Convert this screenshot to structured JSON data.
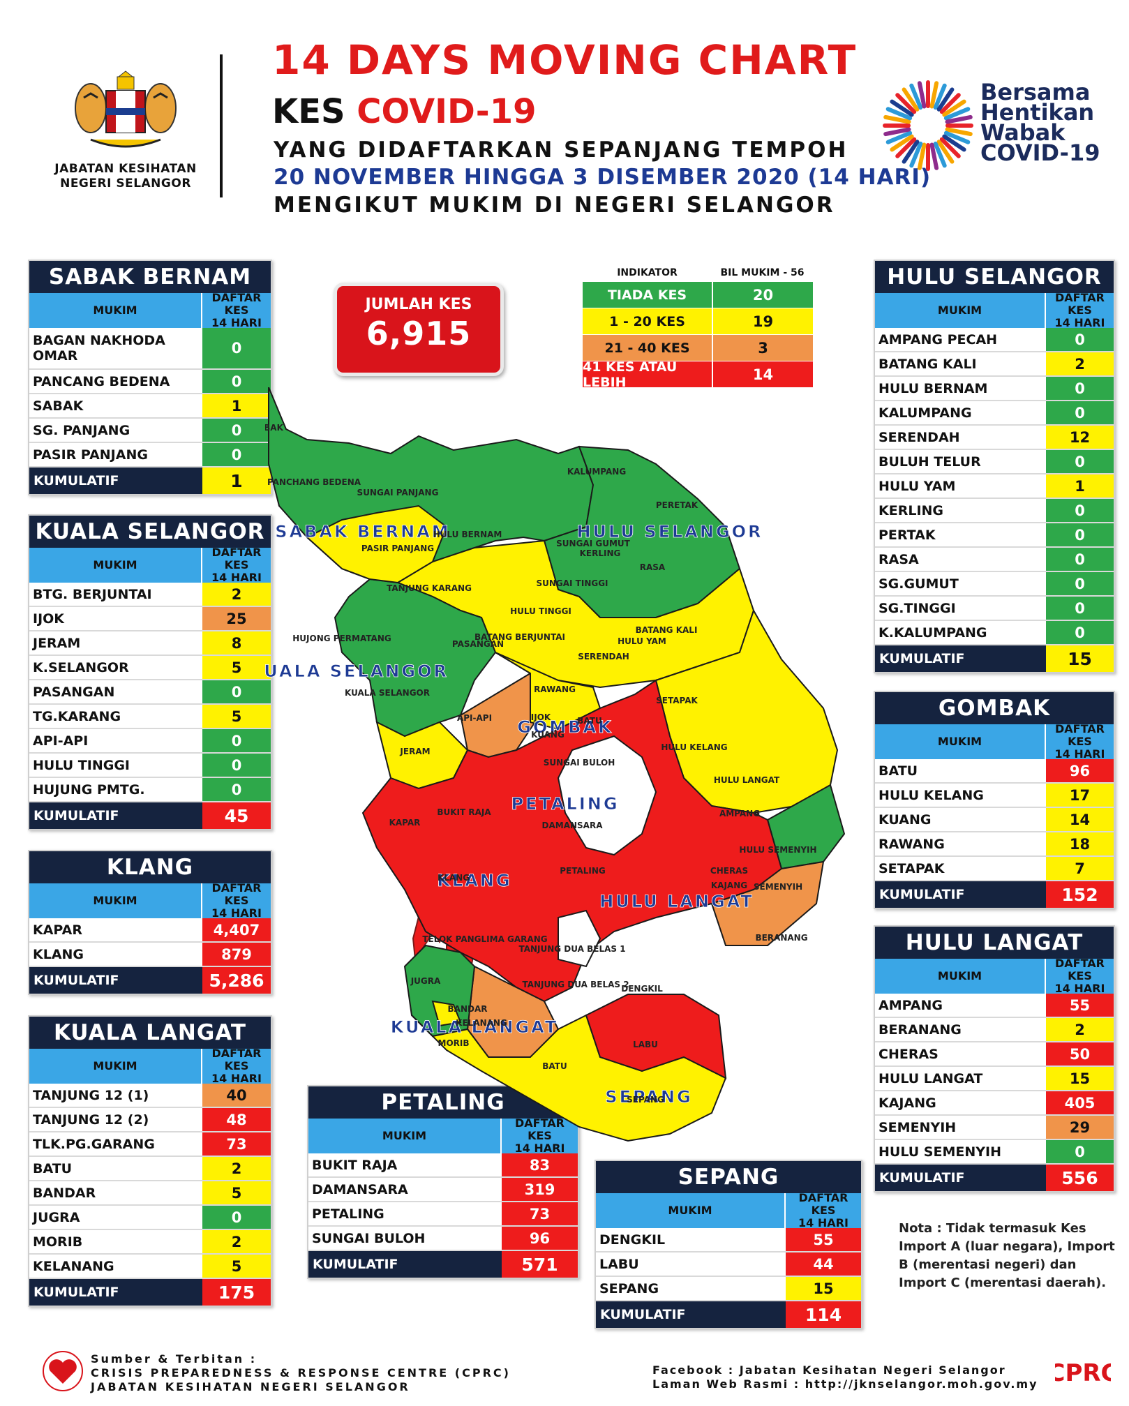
{
  "header": {
    "dept_line1": "JABATAN KESIHATAN",
    "dept_line2": "NEGERI SELANGOR",
    "title": "14 DAYS MOVING CHART",
    "kes": "KES",
    "covid": "COVID-19",
    "line3": "YANG DIDAFTARKAN SEPANJANG TEMPOH",
    "line4": "20 NOVEMBER HINGGA 3 DISEMBER 2020 (14 HARI)",
    "line5": "MENGIKUT MUKIM DI NEGERI SELANGOR",
    "campaign_line1": "Bersama",
    "campaign_line2": "Hentikan",
    "campaign_line3": "Wabak",
    "campaign_line4": "COVID-19"
  },
  "jumlah": {
    "label": "JUMLAH KES",
    "value": "6,915"
  },
  "indicator": {
    "header_a": "INDIKATOR",
    "header_b": "BIL MUKIM - 56",
    "rows": [
      {
        "label": "TIADA KES",
        "count": "20",
        "color": "#2ea84a"
      },
      {
        "label": "1 - 20 KES",
        "count": "19",
        "color": "#fff200"
      },
      {
        "label": "21 - 40 KES",
        "count": "3",
        "color": "#f0944a"
      },
      {
        "label": "41 KES ATAU LEBIH",
        "count": "14",
        "color": "#ee1c1c"
      }
    ]
  },
  "col_mukim": "MUKIM",
  "col_daftar_1": "DAFTAR KES",
  "col_daftar_2": "14 HARI",
  "kumulatif_label": "KUMULATIF",
  "districts": {
    "sabak_bernam": {
      "title": "SABAK BERNAM",
      "rows": [
        {
          "name": "BAGAN NAKHODA OMAR",
          "value": "0"
        },
        {
          "name": "PANCANG BEDENA",
          "value": "0"
        },
        {
          "name": "SABAK",
          "value": "1"
        },
        {
          "name": "SG. PANJANG",
          "value": "0"
        },
        {
          "name": "PASIR PANJANG",
          "value": "0"
        }
      ],
      "kumulatif": "1"
    },
    "kuala_selangor": {
      "title": "KUALA SELANGOR",
      "rows": [
        {
          "name": "BTG. BERJUNTAI",
          "value": "2"
        },
        {
          "name": "IJOK",
          "value": "25"
        },
        {
          "name": "JERAM",
          "value": "8"
        },
        {
          "name": "K.SELANGOR",
          "value": "5"
        },
        {
          "name": "PASANGAN",
          "value": "0"
        },
        {
          "name": "TG.KARANG",
          "value": "5"
        },
        {
          "name": "API-API",
          "value": "0"
        },
        {
          "name": "HULU TINGGI",
          "value": "0"
        },
        {
          "name": "HUJUNG PMTG.",
          "value": "0"
        }
      ],
      "kumulatif": "45"
    },
    "klang": {
      "title": "KLANG",
      "rows": [
        {
          "name": "KAPAR",
          "value": "4,407"
        },
        {
          "name": "KLANG",
          "value": "879"
        }
      ],
      "kumulatif": "5,286"
    },
    "kuala_langat": {
      "title": "KUALA LANGAT",
      "rows": [
        {
          "name": "TANJUNG 12 (1)",
          "value": "40"
        },
        {
          "name": "TANJUNG 12 (2)",
          "value": "48"
        },
        {
          "name": "TLK.PG.GARANG",
          "value": "73"
        },
        {
          "name": "BATU",
          "value": "2"
        },
        {
          "name": "BANDAR",
          "value": "5"
        },
        {
          "name": "JUGRA",
          "value": "0"
        },
        {
          "name": "MORIB",
          "value": "2"
        },
        {
          "name": "KELANANG",
          "value": "5"
        }
      ],
      "kumulatif": "175"
    },
    "petaling": {
      "title": "PETALING",
      "rows": [
        {
          "name": "BUKIT RAJA",
          "value": "83"
        },
        {
          "name": "DAMANSARA",
          "value": "319"
        },
        {
          "name": "PETALING",
          "value": "73"
        },
        {
          "name": "SUNGAI BULOH",
          "value": "96"
        }
      ],
      "kumulatif": "571"
    },
    "sepang": {
      "title": "SEPANG",
      "rows": [
        {
          "name": "DENGKIL",
          "value": "55"
        },
        {
          "name": "LABU",
          "value": "44"
        },
        {
          "name": "SEPANG",
          "value": "15"
        }
      ],
      "kumulatif": "114"
    },
    "hulu_selangor": {
      "title": "HULU SELANGOR",
      "rows": [
        {
          "name": "AMPANG PECAH",
          "value": "0"
        },
        {
          "name": "BATANG KALI",
          "value": "2"
        },
        {
          "name": "HULU BERNAM",
          "value": "0"
        },
        {
          "name": "KALUMPANG",
          "value": "0"
        },
        {
          "name": "SERENDAH",
          "value": "12"
        },
        {
          "name": "BULUH TELUR",
          "value": "0"
        },
        {
          "name": "HULU YAM",
          "value": "1"
        },
        {
          "name": "KERLING",
          "value": "0"
        },
        {
          "name": "PERTAK",
          "value": "0"
        },
        {
          "name": "RASA",
          "value": "0"
        },
        {
          "name": "SG.GUMUT",
          "value": "0"
        },
        {
          "name": "SG.TINGGI",
          "value": "0"
        },
        {
          "name": "K.KALUMPANG",
          "value": "0"
        }
      ],
      "kumulatif": "15"
    },
    "gombak": {
      "title": "GOMBAK",
      "rows": [
        {
          "name": "BATU",
          "value": "96"
        },
        {
          "name": "HULU KELANG",
          "value": "17"
        },
        {
          "name": "KUANG",
          "value": "14"
        },
        {
          "name": "RAWANG",
          "value": "18"
        },
        {
          "name": "SETAPAK",
          "value": "7"
        }
      ],
      "kumulatif": "152"
    },
    "hulu_langat": {
      "title": "HULU LANGAT",
      "rows": [
        {
          "name": "AMPANG",
          "value": "55"
        },
        {
          "name": "BERANANG",
          "value": "2"
        },
        {
          "name": "CHERAS",
          "value": "50"
        },
        {
          "name": "HULU LANGAT",
          "value": "15"
        },
        {
          "name": "KAJANG",
          "value": "405"
        },
        {
          "name": "SEMENYIH",
          "value": "29"
        },
        {
          "name": "HULU SEMENYIH",
          "value": "0"
        }
      ],
      "kumulatif": "556"
    }
  },
  "map": {
    "district_labels": [
      "SABAK BERNAM",
      "HULU SELANGOR",
      "KUALA SELANGOR",
      "GOMBAK",
      "PETALING",
      "KLANG",
      "HULU LANGAT",
      "KUALA LANGAT",
      "SEPANG"
    ],
    "mukim_labels": [
      "BAK",
      "PANCHANG BEDENA",
      "SUNGAI PANJANG",
      "PASIR PANJANG",
      "HULU BERNAM",
      "KALUMPANG",
      "PERETAK",
      "KERLING",
      "SUNGAI GUMUT",
      "SUNGAI TINGGI",
      "RASA",
      "TANJUNG KARANG",
      "HULU TINGGI",
      "BATANG KALI",
      "HULU YAM",
      "SERENDAH",
      "HUJONG PERMATANG",
      "PASANGAN",
      "BATANG BERJUNTAI",
      "KUALA SELANGOR",
      "RAWANG",
      "SETAPAK",
      "API-API",
      "IJOK",
      "KUANG",
      "BATU",
      "HULU KELANG",
      "JERAM",
      "SUNGAI BULOH",
      "HULU LANGAT",
      "KAPAR",
      "BUKIT RAJA",
      "DAMANSARA",
      "AMPANG",
      "HULU SEMENYIH",
      "KLANG",
      "PETALING",
      "CHERAS",
      "KAJANG",
      "SEMENYIH",
      "TELOK PANGLIMA GARANG",
      "TANJUNG DUA BELAS 1",
      "TANJUNG DUA BELAS 2",
      "BERANANG",
      "JUGRA",
      "BANDAR",
      "KELANANG",
      "DENGKIL",
      "MORIB",
      "BATU",
      "LABU",
      "SEPANG"
    ]
  },
  "nota": "Nota : Tidak termasuk Kes Import A (luar negara), Import B (merentasi negeri) dan Import C (merentasi daerah).",
  "footer": {
    "left1": "Sumber & Terbitan :",
    "left2": "CRISIS PREPAREDNESS & RESPONSE CENTRE (CPRC)",
    "left3": "JABATAN KESIHATAN NEGERI SELANGOR",
    "right1": "Facebook : Jabatan Kesihatan Negeri Selangor",
    "right2": "Laman Web Rasmi : http://jknselangor.moh.gov.my",
    "cprc": "CPRC"
  }
}
